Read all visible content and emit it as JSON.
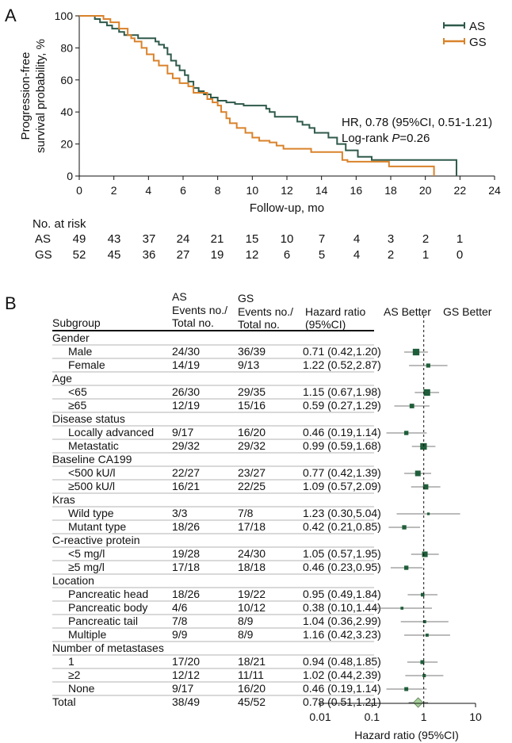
{
  "panel_a": {
    "label": "A",
    "km": {
      "ylabel_line1": "Progression-free",
      "ylabel_line2": "survival probability, %",
      "xlabel": "Follow-up, mo",
      "yticks": [
        "0",
        "20",
        "40",
        "60",
        "80",
        "100"
      ],
      "xticks": [
        "0",
        "2",
        "4",
        "6",
        "8",
        "10",
        "12",
        "14",
        "16",
        "18",
        "20",
        "22",
        "24"
      ],
      "hr_text": "HR, 0.78 (95%CI, 0.51-1.21)",
      "logrank_prefix": "Log-rank ",
      "logrank_p": "P",
      "logrank_value": "=0.26"
    },
    "risk_table": {
      "title": "No. at risk",
      "rows": [
        {
          "label": "AS",
          "counts": [
            "49",
            "43",
            "37",
            "24",
            "21",
            "15",
            "10",
            "7",
            "4",
            "3",
            "2",
            "1"
          ]
        },
        {
          "label": "GS",
          "counts": [
            "52",
            "45",
            "36",
            "27",
            "19",
            "12",
            "6",
            "5",
            "4",
            "2",
            "1",
            "0"
          ]
        }
      ]
    }
  },
  "panel_b": {
    "label": "B",
    "headers": {
      "subgroup": "Subgroup",
      "as_line1": "AS",
      "as_line2": "Events no./",
      "as_line3": "Total no.",
      "gs_line1": "GS",
      "gs_line2": "Events no./",
      "gs_line3": "Total no.",
      "hr_line1": "Hazard ratio",
      "hr_line2": "(95%CI)",
      "as_better": "AS Better",
      "gs_better": "GS Better"
    },
    "axis_ticks": [
      "0.01",
      "0.1",
      "1",
      "10"
    ],
    "axis_label": "Hazard ratio (95%CI)"
  },
  "chart_data": [
    {
      "type": "line",
      "subtype": "kaplan-meier",
      "title": "",
      "xlabel": "Follow-up, mo",
      "ylabel": "Progression-free survival probability, %",
      "xlim": [
        0,
        24
      ],
      "ylim": [
        0,
        100
      ],
      "legend": {
        "position": "top-right",
        "entries": [
          "AS",
          "GS"
        ]
      },
      "series": [
        {
          "name": "AS",
          "color": "#2f5a4a",
          "steps": [
            [
              0,
              100
            ],
            [
              0.9,
              98
            ],
            [
              1.2,
              96
            ],
            [
              1.6,
              94
            ],
            [
              1.9,
              92
            ],
            [
              2.3,
              90
            ],
            [
              2.6,
              88
            ],
            [
              3.4,
              86
            ],
            [
              4.4,
              84
            ],
            [
              4.6,
              82
            ],
            [
              4.9,
              80
            ],
            [
              5.1,
              76
            ],
            [
              5.3,
              72
            ],
            [
              5.6,
              69
            ],
            [
              5.8,
              66
            ],
            [
              6.1,
              63
            ],
            [
              6.3,
              59
            ],
            [
              6.6,
              55
            ],
            [
              6.9,
              53
            ],
            [
              7.2,
              51
            ],
            [
              7.6,
              49
            ],
            [
              8.0,
              47
            ],
            [
              8.5,
              46
            ],
            [
              9.0,
              45
            ],
            [
              9.5,
              44
            ],
            [
              10.8,
              42
            ],
            [
              11.0,
              40
            ],
            [
              11.3,
              37
            ],
            [
              12.6,
              34
            ],
            [
              12.9,
              32
            ],
            [
              13.3,
              30
            ],
            [
              13.6,
              27
            ],
            [
              14.4,
              24
            ],
            [
              14.9,
              20
            ],
            [
              15.4,
              16
            ],
            [
              16.1,
              12
            ],
            [
              16.9,
              10
            ],
            [
              21.8,
              10
            ],
            [
              21.8,
              0
            ]
          ],
          "end_x": 21.8
        },
        {
          "name": "GS",
          "color": "#d9822b",
          "steps": [
            [
              0,
              100
            ],
            [
              1.4,
              98
            ],
            [
              1.8,
              96
            ],
            [
              2.3,
              92
            ],
            [
              2.8,
              88
            ],
            [
              3.0,
              86
            ],
            [
              3.2,
              84
            ],
            [
              3.6,
              80
            ],
            [
              3.9,
              76
            ],
            [
              4.3,
              72
            ],
            [
              4.6,
              69
            ],
            [
              5.1,
              64
            ],
            [
              5.4,
              61
            ],
            [
              5.8,
              58
            ],
            [
              6.3,
              56
            ],
            [
              6.6,
              52
            ],
            [
              7.4,
              48
            ],
            [
              7.7,
              46
            ],
            [
              8.0,
              44
            ],
            [
              8.2,
              40
            ],
            [
              8.5,
              36
            ],
            [
              8.7,
              33
            ],
            [
              9.1,
              30
            ],
            [
              9.6,
              27
            ],
            [
              10.0,
              24
            ],
            [
              10.4,
              22
            ],
            [
              11.0,
              21
            ],
            [
              11.4,
              19
            ],
            [
              11.8,
              17
            ],
            [
              13.4,
              15
            ],
            [
              15.2,
              10
            ],
            [
              15.5,
              9
            ],
            [
              17.9,
              9
            ],
            [
              17.9,
              6
            ],
            [
              20.5,
              6
            ],
            [
              20.5,
              0
            ]
          ],
          "end_x": 20.5
        }
      ]
    },
    {
      "type": "forest",
      "xscale": "log",
      "xlim": [
        0.01,
        10
      ],
      "reference_line": 1,
      "xlabel": "Hazard ratio (95%CI)",
      "rows": [
        {
          "kind": "group",
          "label": "Gender"
        },
        {
          "kind": "sub",
          "label": "Male",
          "as": "24/30",
          "gs": "36/39",
          "hr_text": "0.71 (0.42,1.20)",
          "hr": 0.71,
          "lo": 0.42,
          "hi": 1.2,
          "weight": 3
        },
        {
          "kind": "sub",
          "label": "Female",
          "as": "14/19",
          "gs": "9/13",
          "hr_text": "1.22 (0.52,2.87)",
          "hr": 1.22,
          "lo": 0.52,
          "hi": 2.87,
          "weight": 1.5
        },
        {
          "kind": "group",
          "label": "Age"
        },
        {
          "kind": "sub",
          "label": "<65",
          "as": "26/30",
          "gs": "29/35",
          "hr_text": "1.15 (0.67,1.98)",
          "hr": 1.15,
          "lo": 0.67,
          "hi": 1.98,
          "weight": 3
        },
        {
          "kind": "sub",
          "label": "≥65",
          "as": "12/19",
          "gs": "15/16",
          "hr_text": "0.59 (0.27,1.29)",
          "hr": 0.59,
          "lo": 0.27,
          "hi": 1.29,
          "weight": 1.8
        },
        {
          "kind": "group",
          "label": "Disease status"
        },
        {
          "kind": "sub",
          "label": "Locally advanced",
          "as": "9/17",
          "gs": "16/20",
          "hr_text": "0.46 (0.19,1.14)",
          "hr": 0.46,
          "lo": 0.19,
          "hi": 1.14,
          "weight": 1.6
        },
        {
          "kind": "sub",
          "label": "Metastatic",
          "as": "29/32",
          "gs": "29/32",
          "hr_text": "0.99 (0.59,1.68)",
          "hr": 0.99,
          "lo": 0.59,
          "hi": 1.68,
          "weight": 3
        },
        {
          "kind": "group",
          "label": "Baseline CA199"
        },
        {
          "kind": "sub",
          "label": "<500 kU/l",
          "as": "22/27",
          "gs": "23/27",
          "hr_text": "0.77 (0.42,1.39)",
          "hr": 0.77,
          "lo": 0.42,
          "hi": 1.39,
          "weight": 2.4
        },
        {
          "kind": "sub",
          "label": "≥500 kU/l",
          "as": "16/21",
          "gs": "22/25",
          "hr_text": "1.09 (0.57,2.09)",
          "hr": 1.09,
          "lo": 0.57,
          "hi": 2.09,
          "weight": 2.2
        },
        {
          "kind": "group",
          "label": "Kras"
        },
        {
          "kind": "sub",
          "label": "Wild type",
          "as": "3/3",
          "gs": "7/8",
          "hr_text": "1.23 (0.30,5.04)",
          "hr": 1.23,
          "lo": 0.3,
          "hi": 5.04,
          "weight": 0.6
        },
        {
          "kind": "sub",
          "label": "Mutant type",
          "as": "18/26",
          "gs": "17/18",
          "hr_text": "0.42 (0.21,0.85)",
          "hr": 0.42,
          "lo": 0.21,
          "hi": 0.85,
          "weight": 1.6
        },
        {
          "kind": "group",
          "label": "C-reactive protein"
        },
        {
          "kind": "sub",
          "label": "<5 mg/l",
          "as": "19/28",
          "gs": "24/30",
          "hr_text": "1.05 (0.57,1.95)",
          "hr": 1.05,
          "lo": 0.57,
          "hi": 1.95,
          "weight": 2.4
        },
        {
          "kind": "sub",
          "label": "≥5 mg/l",
          "as": "17/18",
          "gs": "18/18",
          "hr_text": "0.46 (0.23,0.95)",
          "hr": 0.46,
          "lo": 0.23,
          "hi": 0.95,
          "weight": 1.6
        },
        {
          "kind": "group",
          "label": "Location"
        },
        {
          "kind": "sub",
          "label": "Pancreatic head",
          "as": "18/26",
          "gs": "19/22",
          "hr_text": "0.95 (0.49,1.84)",
          "hr": 0.95,
          "lo": 0.49,
          "hi": 1.84,
          "weight": 1.2
        },
        {
          "kind": "sub",
          "label": "Pancreatic body",
          "as": "4/6",
          "gs": "10/12",
          "hr_text": "0.38 (0.10,1.44)",
          "hr": 0.38,
          "lo": 0.1,
          "hi": 1.44,
          "weight": 0.8
        },
        {
          "kind": "sub",
          "label": "Pancreatic tail",
          "as": "7/8",
          "gs": "8/9",
          "hr_text": "1.04 (0.36,2.99)",
          "hr": 1.04,
          "lo": 0.36,
          "hi": 2.99,
          "weight": 0.9
        },
        {
          "kind": "sub",
          "label": "Multiple",
          "as": "9/9",
          "gs": "8/9",
          "hr_text": "1.16 (0.42,3.23)",
          "hr": 1.16,
          "lo": 0.42,
          "hi": 3.23,
          "weight": 0.9
        },
        {
          "kind": "group",
          "label": "Number of metastases"
        },
        {
          "kind": "sub",
          "label": "1",
          "as": "17/20",
          "gs": "18/21",
          "hr_text": "0.94 (0.48,1.85)",
          "hr": 0.94,
          "lo": 0.48,
          "hi": 1.85,
          "weight": 1.4
        },
        {
          "kind": "sub",
          "label": "≥2",
          "as": "12/12",
          "gs": "11/11",
          "hr_text": "1.02 (0.44,2.39)",
          "hr": 1.02,
          "lo": 0.44,
          "hi": 2.39,
          "weight": 1.0
        },
        {
          "kind": "sub",
          "label": "None",
          "as": "9/17",
          "gs": "16/20",
          "hr_text": "0.46 (0.19,1.14)",
          "hr": 0.46,
          "lo": 0.19,
          "hi": 1.14,
          "weight": 1.4
        },
        {
          "kind": "total",
          "label": "Total",
          "as": "38/49",
          "gs": "45/52",
          "hr_text": "0.78 (0.51,1.21)",
          "hr": 0.78,
          "lo": 0.51,
          "hi": 1.21
        }
      ]
    }
  ]
}
